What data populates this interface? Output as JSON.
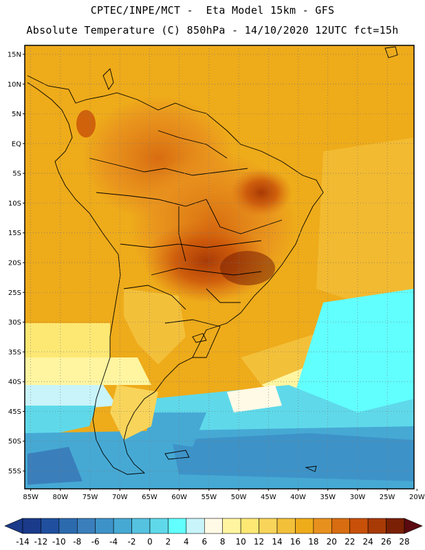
{
  "header": {
    "line1": "CPTEC/INPE/MCT -  Eta Model 15km - GFS",
    "line2": "Absolute Temperature (C) 850hPa - 14/10/2020 12UTC fct=15h"
  },
  "map": {
    "lat_labels": [
      "15N",
      "10N",
      "5N",
      "EQ",
      "5S",
      "10S",
      "15S",
      "20S",
      "25S",
      "30S",
      "35S",
      "40S",
      "45S",
      "50S",
      "55S"
    ],
    "lon_labels": [
      "85W",
      "80W",
      "75W",
      "70W",
      "65W",
      "60W",
      "55W",
      "50W",
      "45W",
      "40W",
      "35W",
      "30W",
      "25W",
      "20W"
    ],
    "lat_values": [
      15,
      10,
      5,
      0,
      -5,
      -10,
      -15,
      -20,
      -25,
      -30,
      -35,
      -40,
      -45,
      -50,
      -55
    ],
    "lon_values": [
      -85,
      -80,
      -75,
      -70,
      -65,
      -60,
      -55,
      -50,
      -45,
      -40,
      -35,
      -30,
      -25,
      -20
    ],
    "lat_range": [
      -58,
      16.5
    ],
    "lon_range": [
      -86,
      -20.5
    ],
    "grid": "dotted"
  },
  "colorbar": {
    "labels": [
      "-14",
      "-12",
      "-10",
      "-8",
      "-6",
      "-4",
      "-2",
      "0",
      "2",
      "4",
      "6",
      "8",
      "10",
      "12",
      "14",
      "16",
      "18",
      "20",
      "22",
      "24",
      "26",
      "28"
    ],
    "colors": [
      "#1a3a8a",
      "#1f4f9e",
      "#2c6aae",
      "#3a7fbc",
      "#3d93c8",
      "#46a9d4",
      "#55c2e0",
      "#5fd9ea",
      "#62ffff",
      "#c8f4fa",
      "#fffae6",
      "#fff5a0",
      "#fde874",
      "#f8d45a",
      "#f3c03a",
      "#eeab1a",
      "#e8901e",
      "#d86c10",
      "#c85008",
      "#a83a06",
      "#7a2004"
    ]
  }
}
